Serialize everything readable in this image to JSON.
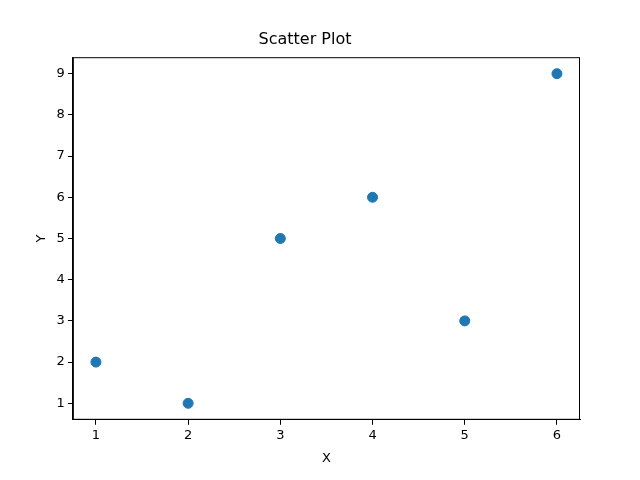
{
  "chart_data": {
    "type": "scatter",
    "title": "Scatter Plot",
    "x_label": "X",
    "y_label": "Y",
    "x": [
      1,
      2,
      3,
      4,
      5,
      6
    ],
    "values": [
      2,
      1,
      5,
      6,
      3,
      9
    ],
    "color": "#1f77b4",
    "xlim": [
      0.75,
      6.25
    ],
    "xticks": [
      1,
      2,
      3,
      4,
      5,
      6
    ],
    "ylim": [
      0.6,
      9.4
    ],
    "yticks": [
      1,
      2,
      3,
      4,
      5,
      6,
      7,
      8,
      9
    ],
    "grid": false
  }
}
